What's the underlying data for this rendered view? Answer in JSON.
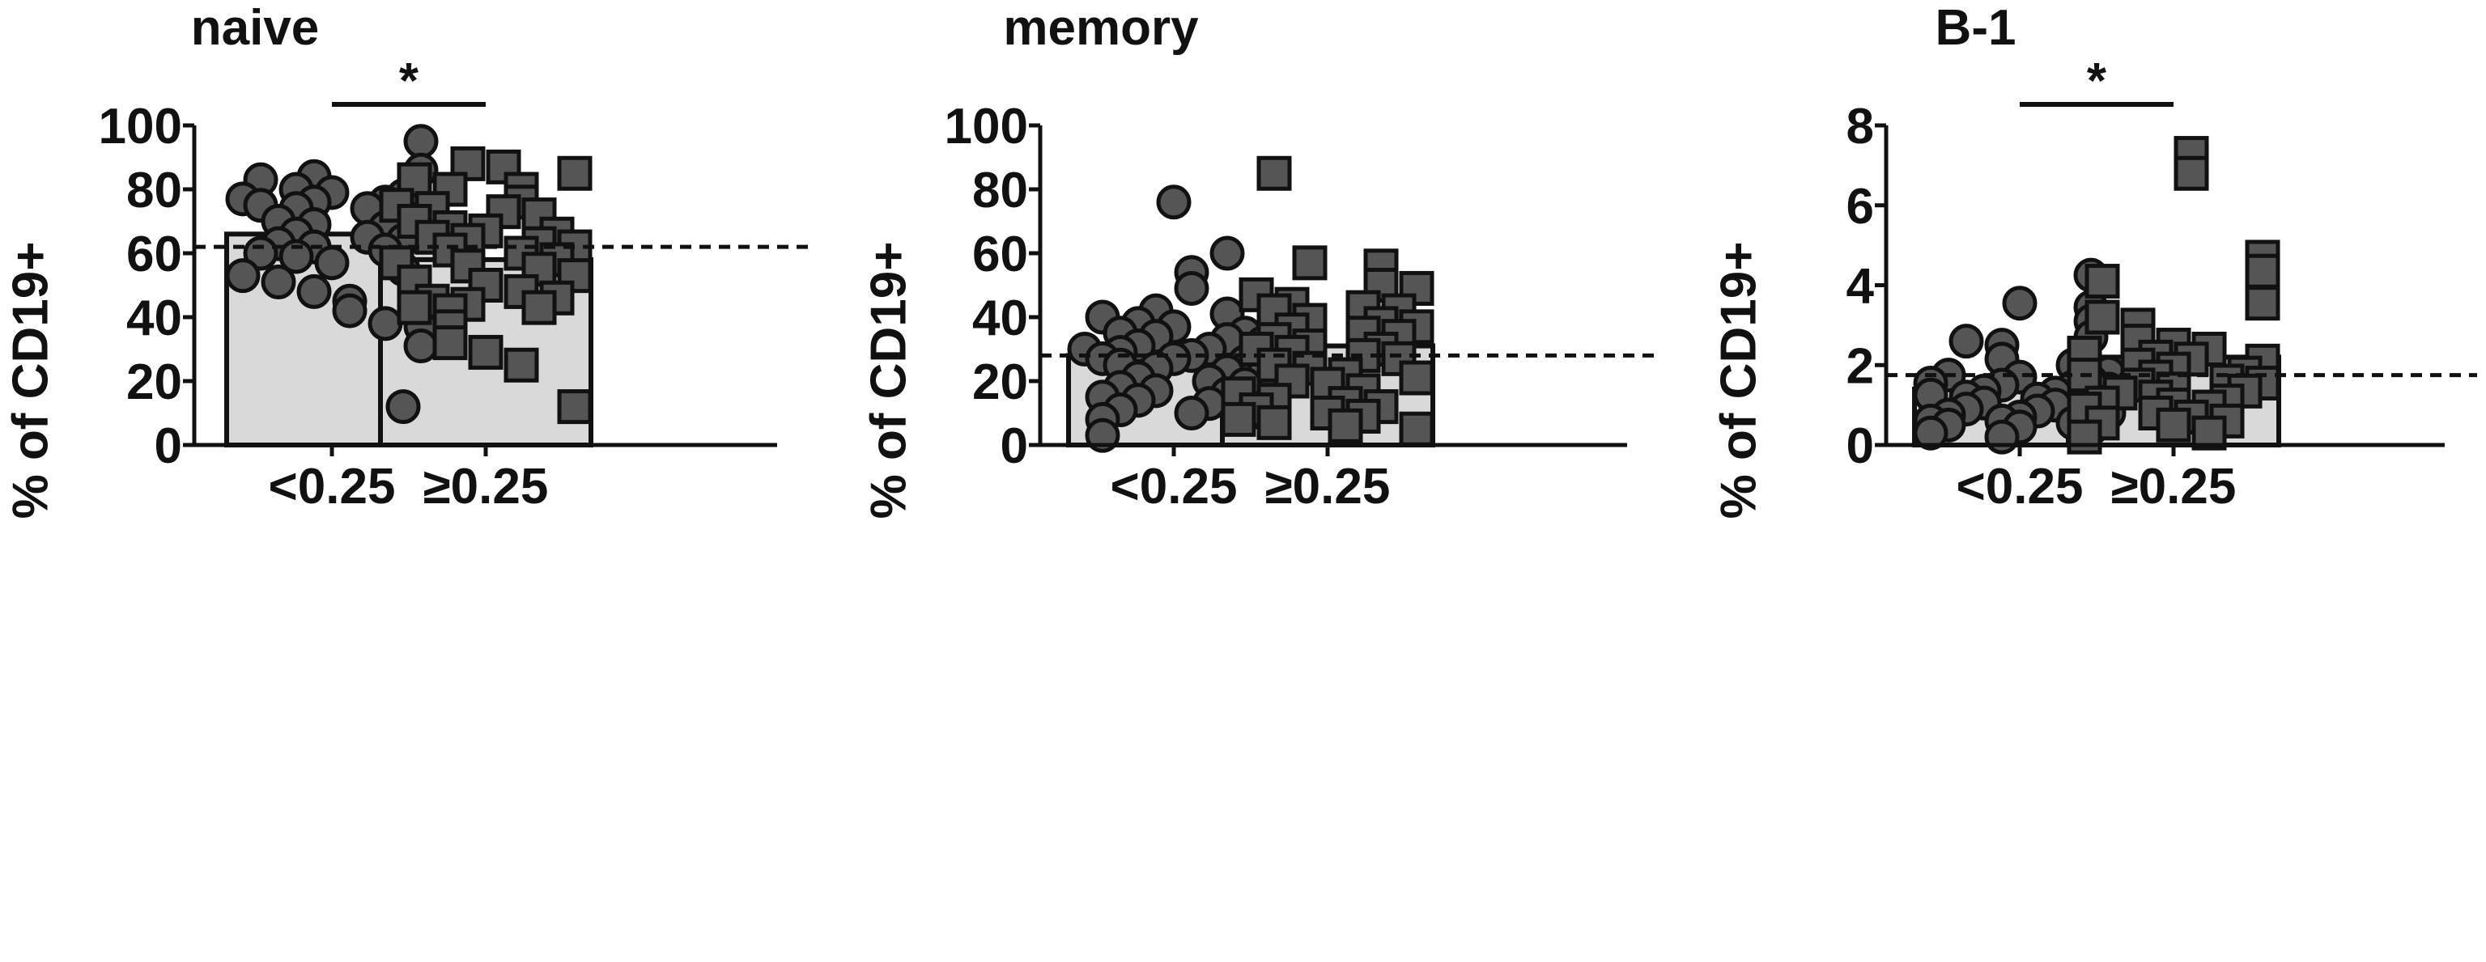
{
  "chart_data": [
    {
      "type": "scatter",
      "title": "naive",
      "ylabel": "% of CD19+",
      "ylim": [
        0,
        100
      ],
      "yticks": [
        "0",
        "20",
        "40",
        "60",
        "80",
        "100"
      ],
      "categories": [
        "<0.25",
        "≥0.25"
      ],
      "bar_means": [
        66,
        58
      ],
      "reference_line": 62,
      "significance": [
        {
          "from": "<0.25",
          "to": "≥0.25",
          "label": "*"
        }
      ],
      "series": [
        {
          "marker": "circle",
          "values": [
            95,
            84,
            86,
            83,
            80,
            79,
            78,
            77,
            76,
            76,
            75,
            74,
            74,
            72,
            70,
            69,
            68,
            67,
            66,
            65,
            64,
            63,
            62,
            61,
            60,
            59,
            57,
            55,
            53,
            51,
            48,
            45,
            42,
            38,
            37,
            31,
            12
          ]
        },
        {
          "marker": "square",
          "values": [
            88,
            87,
            85,
            83,
            80,
            80,
            76,
            75,
            74,
            73,
            72,
            70,
            68,
            67,
            66,
            65,
            64,
            63,
            62,
            61,
            60,
            58,
            57,
            56,
            55,
            53,
            51,
            50,
            48,
            46,
            45,
            44,
            43,
            43,
            42,
            37,
            32,
            29,
            25,
            12
          ]
        }
      ]
    },
    {
      "type": "scatter",
      "title": "memory",
      "ylabel": "% of CD19+",
      "ylim": [
        0,
        100
      ],
      "yticks": [
        "0",
        "20",
        "40",
        "60",
        "80",
        "100"
      ],
      "categories": [
        "<0.25",
        "≥0.25"
      ],
      "bar_means": [
        28,
        31
      ],
      "reference_line": 28,
      "significance": [],
      "series": [
        {
          "marker": "circle",
          "values": [
            76,
            60,
            54,
            49,
            42,
            41,
            40,
            38,
            37,
            35,
            35,
            34,
            33,
            32,
            31,
            30,
            30,
            29,
            28,
            28,
            27,
            27,
            26,
            25,
            24,
            23,
            22,
            21,
            20,
            19,
            18,
            17,
            16,
            15,
            14,
            13,
            12,
            11,
            10,
            10,
            8,
            3
          ]
        },
        {
          "marker": "square",
          "values": [
            85,
            57,
            56,
            50,
            49,
            47,
            44,
            43,
            42,
            42,
            39,
            38,
            37,
            36,
            35,
            34,
            33,
            31,
            30,
            30,
            29,
            28,
            27,
            25,
            24,
            22,
            21,
            20,
            19,
            17,
            16,
            14,
            13,
            12,
            11,
            10,
            9,
            8,
            7,
            6,
            5
          ]
        }
      ]
    },
    {
      "type": "scatter",
      "title": "B-1",
      "ylabel": "% of CD19+",
      "ylim": [
        0,
        8
      ],
      "yticks": [
        "0",
        "2",
        "4",
        "6",
        "8"
      ],
      "categories": [
        "<0.25",
        "≥0.25"
      ],
      "bar_means": [
        1.4,
        2.2
      ],
      "reference_line": 1.75,
      "significance": [
        {
          "from": "<0.25",
          "to": "≥0.25",
          "label": "*"
        }
      ],
      "series": [
        {
          "marker": "circle",
          "values": [
            4.25,
            3.55,
            3.45,
            3.1,
            2.7,
            2.6,
            2.5,
            2.15,
            2.0,
            1.8,
            1.75,
            1.7,
            1.6,
            1.55,
            1.5,
            1.45,
            1.4,
            1.35,
            1.3,
            1.25,
            1.2,
            1.15,
            1.1,
            1.05,
            1.0,
            0.95,
            0.9,
            0.85,
            0.8,
            0.75,
            0.7,
            0.65,
            0.6,
            0.6,
            0.55,
            0.5,
            0.45,
            0.4,
            0.3,
            0.2
          ]
        },
        {
          "marker": "square",
          "values": [
            7.3,
            6.8,
            4.7,
            4.35,
            4.1,
            3.55,
            3.2,
            3.0,
            2.6,
            2.5,
            2.4,
            2.3,
            2.2,
            2.15,
            2.1,
            2.0,
            1.9,
            1.8,
            1.75,
            1.7,
            1.6,
            1.55,
            1.5,
            1.4,
            1.35,
            1.3,
            1.2,
            1.1,
            1.05,
            1.0,
            0.95,
            0.9,
            0.8,
            0.7,
            0.6,
            0.55,
            0.5,
            0.3,
            0.2
          ]
        }
      ]
    }
  ]
}
